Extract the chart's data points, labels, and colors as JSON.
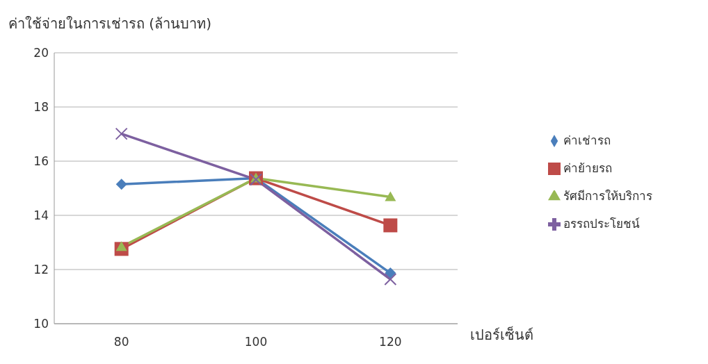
{
  "chart_data": {
    "type": "line",
    "ylabel": "ค่าใช้จ่ายในการเช่ารถ (ล้านบาท)",
    "xlabel": "เปอร์เซ็นต์",
    "categories": [
      "80",
      "100",
      "120"
    ],
    "series": [
      {
        "name": "ค่าเช่ารถ",
        "color": "#4a7ebb",
        "marker": "diamond",
        "values": [
          15.15,
          15.37,
          11.87
        ]
      },
      {
        "name": "ค่าย้ายรถ",
        "color": "#be4b48",
        "marker": "square",
        "values": [
          12.76,
          15.37,
          13.63
        ]
      },
      {
        "name": "รัศมีการให้บริการ",
        "color": "#98b954",
        "marker": "triangle",
        "values": [
          12.84,
          15.37,
          14.68
        ]
      },
      {
        "name": "อรรถประโยชน์",
        "color": "#7d60a0",
        "marker": "cross",
        "values": [
          17.01,
          15.32,
          11.64
        ]
      }
    ],
    "ylim": [
      10,
      20
    ],
    "yticks": [
      10,
      12,
      14,
      16,
      18,
      20
    ],
    "grid": "y",
    "legend": "right",
    "line_style": "solid"
  }
}
